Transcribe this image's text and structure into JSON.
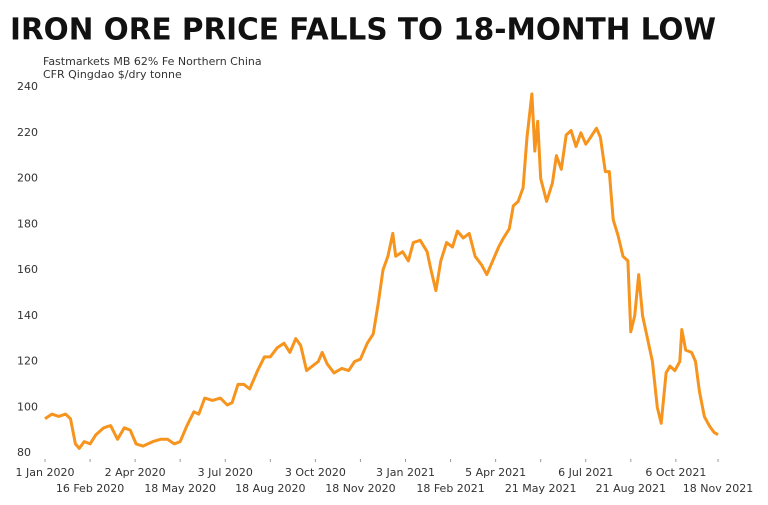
{
  "chart_data": {
    "type": "line",
    "title": "IRON ORE PRICE FALLS TO 18-MONTH LOW",
    "subtitle": [
      "Fastmarkets MB 62% Fe Northern China",
      "CFR Qingdao $/dry tonne"
    ],
    "color": "#f7941d",
    "x": [
      "2020-01-01",
      "2020-01-08",
      "2020-01-15",
      "2020-01-22",
      "2020-01-27",
      "2020-02-01",
      "2020-02-05",
      "2020-02-10",
      "2020-02-16",
      "2020-02-22",
      "2020-03-01",
      "2020-03-08",
      "2020-03-15",
      "2020-03-22",
      "2020-03-28",
      "2020-04-03",
      "2020-04-10",
      "2020-04-20",
      "2020-04-28",
      "2020-05-05",
      "2020-05-12",
      "2020-05-18",
      "2020-05-25",
      "2020-06-01",
      "2020-06-06",
      "2020-06-12",
      "2020-06-20",
      "2020-06-28",
      "2020-07-05",
      "2020-07-10",
      "2020-07-16",
      "2020-07-22",
      "2020-07-28",
      "2020-08-05",
      "2020-08-12",
      "2020-08-18",
      "2020-08-25",
      "2020-09-01",
      "2020-09-07",
      "2020-09-13",
      "2020-09-18",
      "2020-09-24",
      "2020-09-30",
      "2020-10-06",
      "2020-10-10",
      "2020-10-15",
      "2020-10-22",
      "2020-10-30",
      "2020-11-06",
      "2020-11-12",
      "2020-11-18",
      "2020-11-25",
      "2020-12-01",
      "2020-12-06",
      "2020-12-11",
      "2020-12-16",
      "2020-12-21",
      "2020-12-24",
      "2020-12-31",
      "2021-01-06",
      "2021-01-11",
      "2021-01-18",
      "2021-01-25",
      "2021-01-29",
      "2021-02-03",
      "2021-02-08",
      "2021-02-14",
      "2021-02-20",
      "2021-02-25",
      "2021-03-03",
      "2021-03-09",
      "2021-03-15",
      "2021-03-22",
      "2021-03-27",
      "2021-04-02",
      "2021-04-08",
      "2021-04-13",
      "2021-04-19",
      "2021-04-23",
      "2021-04-28",
      "2021-05-03",
      "2021-05-07",
      "2021-05-12",
      "2021-05-15",
      "2021-05-18",
      "2021-05-21",
      "2021-05-27",
      "2021-06-02",
      "2021-06-06",
      "2021-06-11",
      "2021-06-16",
      "2021-06-21",
      "2021-06-26",
      "2021-07-01",
      "2021-07-06",
      "2021-07-11",
      "2021-07-17",
      "2021-07-21",
      "2021-07-26",
      "2021-07-30",
      "2021-08-03",
      "2021-08-08",
      "2021-08-13",
      "2021-08-18",
      "2021-08-21",
      "2021-08-25",
      "2021-08-29",
      "2021-09-02",
      "2021-09-07",
      "2021-09-12",
      "2021-09-17",
      "2021-09-21",
      "2021-09-26",
      "2021-09-30",
      "2021-10-05",
      "2021-10-10",
      "2021-10-12",
      "2021-10-16",
      "2021-10-22",
      "2021-10-26",
      "2021-10-30",
      "2021-11-04",
      "2021-11-09",
      "2021-11-14",
      "2021-11-18"
    ],
    "values": [
      95,
      97,
      96,
      97,
      95,
      84,
      82,
      85,
      84,
      88,
      91,
      92,
      86,
      91,
      90,
      84,
      83,
      85,
      86,
      86,
      84,
      85,
      92,
      98,
      97,
      104,
      103,
      104,
      101,
      102,
      110,
      110,
      108,
      116,
      122,
      122,
      126,
      128,
      124,
      130,
      127,
      116,
      118,
      120,
      124,
      119,
      115,
      117,
      116,
      120,
      121,
      128,
      132,
      145,
      160,
      166,
      176,
      166,
      168,
      164,
      172,
      173,
      168,
      160,
      151,
      164,
      172,
      170,
      177,
      174,
      176,
      166,
      162,
      158,
      164,
      170,
      174,
      178,
      188,
      190,
      196,
      218,
      237,
      212,
      225,
      200,
      190,
      198,
      210,
      204,
      219,
      221,
      214,
      220,
      215,
      218,
      222,
      218,
      203,
      203,
      182,
      175,
      166,
      164,
      133,
      140,
      158,
      140,
      130,
      120,
      100,
      93,
      115,
      118,
      116,
      120,
      134,
      125,
      124,
      120,
      107,
      96,
      92,
      89,
      88
    ],
    "xlim": [
      "2020-01-01",
      "2021-11-18"
    ],
    "xticks": [
      {
        "value": "2020-01-01",
        "label": "1 Jan 2020"
      },
      {
        "value": "2020-02-16",
        "label": "16 Feb 2020"
      },
      {
        "value": "2020-04-02",
        "label": "2 Apr 2020"
      },
      {
        "value": "2020-05-18",
        "label": "18 May 2020"
      },
      {
        "value": "2020-07-03",
        "label": "3 Jul 2020"
      },
      {
        "value": "2020-08-18",
        "label": "18 Aug 2020"
      },
      {
        "value": "2020-10-03",
        "label": "3 Oct 2020"
      },
      {
        "value": "2020-11-18",
        "label": "18 Nov 2020"
      },
      {
        "value": "2021-01-03",
        "label": "3 Jan 2021"
      },
      {
        "value": "2021-02-18",
        "label": "18 Feb 2021"
      },
      {
        "value": "2021-04-05",
        "label": "5 Apr 2021"
      },
      {
        "value": "2021-05-21",
        "label": "21 May 2021"
      },
      {
        "value": "2021-07-06",
        "label": "6 Jul 2021"
      },
      {
        "value": "2021-08-21",
        "label": "21 Aug 2021"
      },
      {
        "value": "2021-10-06",
        "label": "6 Oct 2021"
      },
      {
        "value": "2021-11-18",
        "label": "18 Nov 2021"
      }
    ],
    "ylim": [
      80,
      240
    ],
    "yticks": [
      80,
      100,
      120,
      140,
      160,
      180,
      200,
      220,
      240
    ],
    "grid": false
  }
}
